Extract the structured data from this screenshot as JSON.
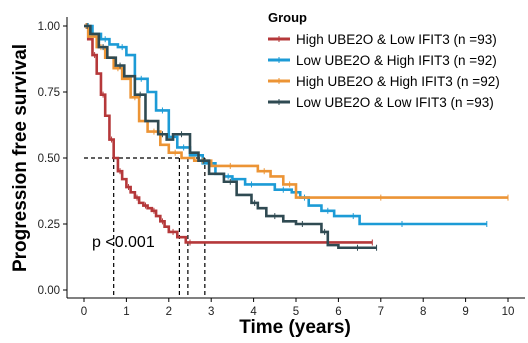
{
  "chart_data": {
    "type": "line",
    "xlabel": "Time (years)",
    "ylabel": "Progression free survival",
    "xlim": [
      -0.3,
      10.3
    ],
    "ylim": [
      -0.03,
      1.03
    ],
    "xticks": [
      "0",
      "1",
      "2",
      "3",
      "4",
      "5",
      "6",
      "7",
      "8",
      "9",
      "10"
    ],
    "yticks": [
      "0.00",
      "0.25",
      "0.50",
      "0.75",
      "1.00"
    ],
    "grid": false,
    "legend": {
      "title": "Group",
      "placement": "top-right",
      "labels": [
        "High UBE2O & Low IFIT3 (n =93)",
        "Low UBE2O & High IFIT3 (n =92)",
        "High UBE2O & High IFIT3 (n =92)",
        "Low UBE2O & Low IFIT3 (n =93)"
      ]
    },
    "annotations": [
      {
        "text": "p <0.001",
        "x": 0.2,
        "y": 0.2
      }
    ],
    "median_reference": {
      "y": 0.5,
      "x_values": [
        0.7,
        2.25,
        2.45,
        2.85
      ]
    },
    "series": [
      {
        "name": "High UBE2O & Low IFIT3 (n =93)",
        "color": "#b5383a",
        "x": [
          0,
          0.1,
          0.2,
          0.3,
          0.4,
          0.5,
          0.6,
          0.7,
          0.8,
          0.9,
          1.0,
          1.1,
          1.2,
          1.3,
          1.4,
          1.5,
          1.6,
          1.7,
          1.8,
          1.9,
          2.0,
          2.2,
          2.4,
          2.6,
          6.8
        ],
        "y": [
          1.0,
          0.95,
          0.89,
          0.82,
          0.74,
          0.66,
          0.57,
          0.5,
          0.45,
          0.42,
          0.39,
          0.37,
          0.35,
          0.33,
          0.32,
          0.31,
          0.3,
          0.28,
          0.26,
          0.24,
          0.22,
          0.2,
          0.18,
          0.18,
          0.18
        ]
      },
      {
        "name": "Low UBE2O & High IFIT3 (n =92)",
        "color": "#1c9bd6",
        "x": [
          0,
          0.2,
          0.4,
          0.6,
          0.8,
          1.0,
          1.2,
          1.5,
          1.7,
          2.0,
          2.2,
          2.5,
          2.8,
          3.1,
          3.3,
          3.5,
          3.8,
          4.1,
          4.5,
          4.9,
          5.1,
          5.3,
          5.6,
          5.9,
          6.2,
          6.5,
          7.0,
          8.0,
          9.5
        ],
        "y": [
          1.0,
          0.97,
          0.95,
          0.93,
          0.92,
          0.89,
          0.8,
          0.75,
          0.68,
          0.58,
          0.54,
          0.51,
          0.48,
          0.44,
          0.43,
          0.42,
          0.4,
          0.4,
          0.38,
          0.37,
          0.35,
          0.32,
          0.3,
          0.28,
          0.28,
          0.25,
          0.25,
          0.25,
          0.25
        ]
      },
      {
        "name": "High UBE2O & High IFIT3 (n =92)",
        "color": "#ec9435",
        "x": [
          0,
          0.1,
          0.3,
          0.5,
          0.7,
          0.9,
          1.1,
          1.3,
          1.5,
          1.8,
          2.0,
          2.3,
          2.6,
          3.0,
          3.3,
          3.6,
          4.1,
          4.4,
          4.7,
          5.0,
          6.0,
          8.0,
          10.0
        ],
        "y": [
          1.0,
          0.96,
          0.92,
          0.88,
          0.84,
          0.8,
          0.73,
          0.64,
          0.6,
          0.55,
          0.52,
          0.5,
          0.49,
          0.47,
          0.47,
          0.47,
          0.45,
          0.43,
          0.4,
          0.35,
          0.35,
          0.35,
          0.35
        ]
      },
      {
        "name": "Low UBE2O & Low IFIT3 (n =93)",
        "color": "#2f4a52",
        "x": [
          0,
          0.15,
          0.35,
          0.55,
          0.75,
          0.95,
          1.2,
          1.45,
          1.75,
          1.95,
          2.1,
          2.5,
          2.7,
          2.95,
          3.3,
          3.6,
          3.95,
          4.1,
          4.3,
          4.7,
          5.0,
          5.3,
          5.6,
          5.75,
          6.0,
          6.9
        ],
        "y": [
          1.0,
          0.97,
          0.92,
          0.88,
          0.85,
          0.81,
          0.74,
          0.64,
          0.59,
          0.57,
          0.59,
          0.52,
          0.49,
          0.44,
          0.41,
          0.36,
          0.33,
          0.31,
          0.28,
          0.26,
          0.25,
          0.25,
          0.22,
          0.17,
          0.16,
          0.16
        ]
      }
    ]
  }
}
